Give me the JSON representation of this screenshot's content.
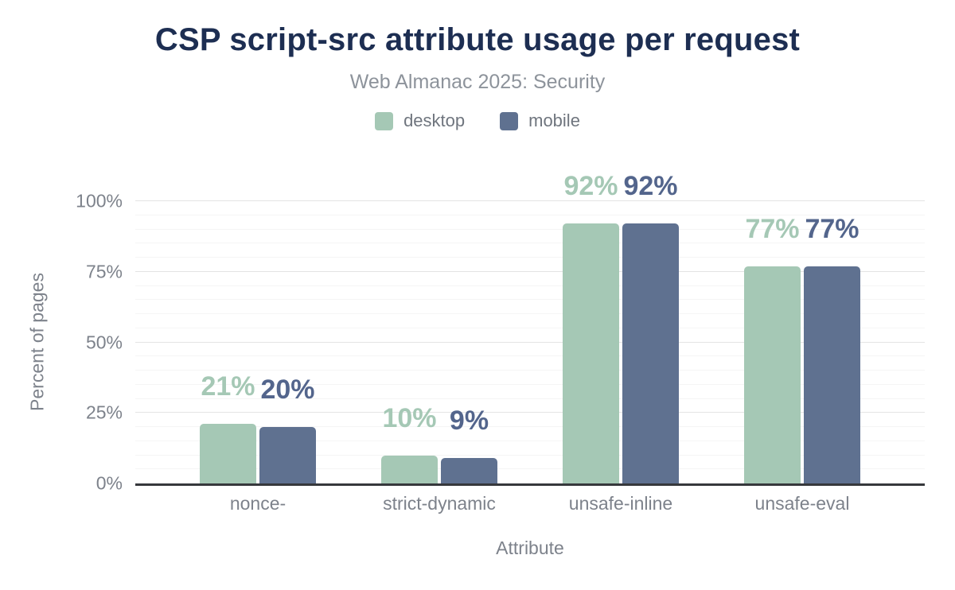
{
  "chart_data": {
    "type": "bar",
    "title": "CSP script-src attribute usage per request",
    "subtitle": "Web Almanac 2025: Security",
    "categories": [
      "nonce-",
      "strict-dynamic",
      "unsafe-inline",
      "unsafe-eval"
    ],
    "series": [
      {
        "name": "desktop",
        "color": "#a5c8b5",
        "label_color": "#a5c8b5",
        "values": [
          21,
          10,
          92,
          77
        ]
      },
      {
        "name": "mobile",
        "color": "#5f7190",
        "label_color": "#53658c",
        "values": [
          20,
          9,
          92,
          77
        ]
      }
    ],
    "value_suffix": "%",
    "xlabel": "Attribute",
    "ylabel": "Percent of pages",
    "y_ticks": [
      "0%",
      "25%",
      "50%",
      "75%",
      "100%"
    ],
    "ylim": [
      0,
      100
    ],
    "grid": {
      "major_step": 25,
      "minor_step": 5,
      "minor_color": "#f5f5f5",
      "major_color": "#e4e4e4"
    },
    "legend_position": "top"
  },
  "colors": {
    "title": "#1d2e52",
    "subtitle": "#8d939b",
    "axis_text": "#7d828b",
    "legend_text": "#6f757e",
    "axis_line": "#36383c",
    "background": "#ffffff"
  }
}
